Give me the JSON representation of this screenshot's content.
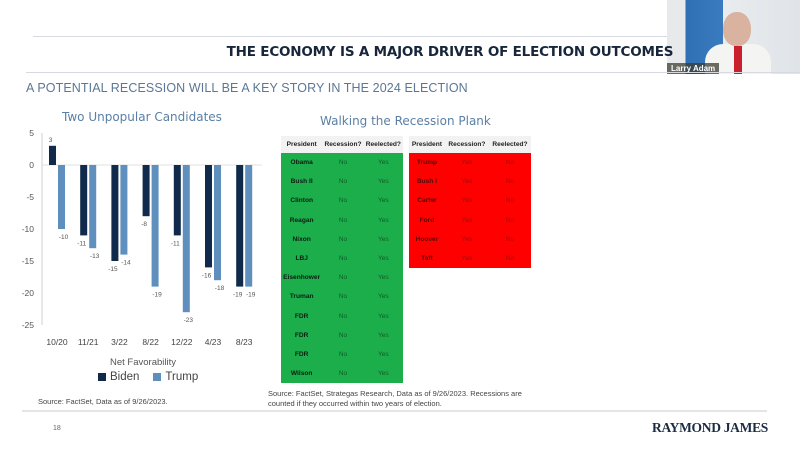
{
  "slide": {
    "title": "THE ECONOMY IS A MAJOR DRIVER OF ELECTION OUTCOMES",
    "subtitle": "A POTENTIAL RECESSION WILL BE A KEY STORY IN THE 2024 ELECTION",
    "page_number": "18",
    "logo": "RAYMOND JAMES"
  },
  "video": {
    "speaker_name": "Larry Adam"
  },
  "colors": {
    "biden": "#0f2a4a",
    "trump": "#5f8fbd",
    "green_table": "#1bae4b",
    "red_table": "#fe0000"
  },
  "chart_data": {
    "type": "bar",
    "title": "Two Unpopular Candidates",
    "xlabel": "Net Favorability",
    "ylabel": "",
    "categories": [
      "10/20",
      "11/21",
      "3/22",
      "8/22",
      "12/22",
      "4/23",
      "8/23"
    ],
    "series": [
      {
        "name": "Biden",
        "values": [
          3,
          -11,
          -15,
          -8,
          -11,
          -16,
          -19
        ]
      },
      {
        "name": "Trump",
        "values": [
          -10,
          -13,
          -14,
          -19,
          -23,
          -18,
          -19
        ]
      }
    ],
    "ylim": [
      -25,
      5
    ],
    "yticks": [
      5,
      0,
      -5,
      -10,
      -15,
      -20,
      -25
    ],
    "grid": false,
    "legend": "bottom",
    "source": "Source: FactSet, Data as of 9/26/2023."
  },
  "recession_tables": {
    "title": "Walking the Recession Plank",
    "headers": [
      "President",
      "Recession?",
      "Reelected?"
    ],
    "reelected": [
      {
        "president": "Obama",
        "recession": "No",
        "reelected": "Yes"
      },
      {
        "president": "Bush II",
        "recession": "No",
        "reelected": "Yes"
      },
      {
        "president": "Clinton",
        "recession": "No",
        "reelected": "Yes"
      },
      {
        "president": "Reagan",
        "recession": "No",
        "reelected": "Yes"
      },
      {
        "president": "Nixon",
        "recession": "No",
        "reelected": "Yes"
      },
      {
        "president": "LBJ",
        "recession": "No",
        "reelected": "Yes"
      },
      {
        "president": "Eisenhower",
        "recession": "No",
        "reelected": "Yes"
      },
      {
        "president": "Truman",
        "recession": "No",
        "reelected": "Yes"
      },
      {
        "president": "FDR",
        "recession": "No",
        "reelected": "Yes"
      },
      {
        "president": "FDR",
        "recession": "No",
        "reelected": "Yes"
      },
      {
        "president": "FDR",
        "recession": "No",
        "reelected": "Yes"
      },
      {
        "president": "Wilson",
        "recession": "No",
        "reelected": "Yes"
      }
    ],
    "not_reelected": [
      {
        "president": "Trump",
        "recession": "Yes",
        "reelected": "No"
      },
      {
        "president": "Bush I",
        "recession": "Yes",
        "reelected": "No"
      },
      {
        "president": "Carter",
        "recession": "Yes",
        "reelected": "No"
      },
      {
        "president": "Ford",
        "recession": "Yes",
        "reelected": "No"
      },
      {
        "president": "Hoover",
        "recession": "Yes",
        "reelected": "No"
      },
      {
        "president": "Taft",
        "recession": "Yes",
        "reelected": "No"
      }
    ],
    "source": "Source: FactSet, Strategas Research, Data as of 9/26/2023. Recessions are counted if they occurred within two years of election."
  }
}
